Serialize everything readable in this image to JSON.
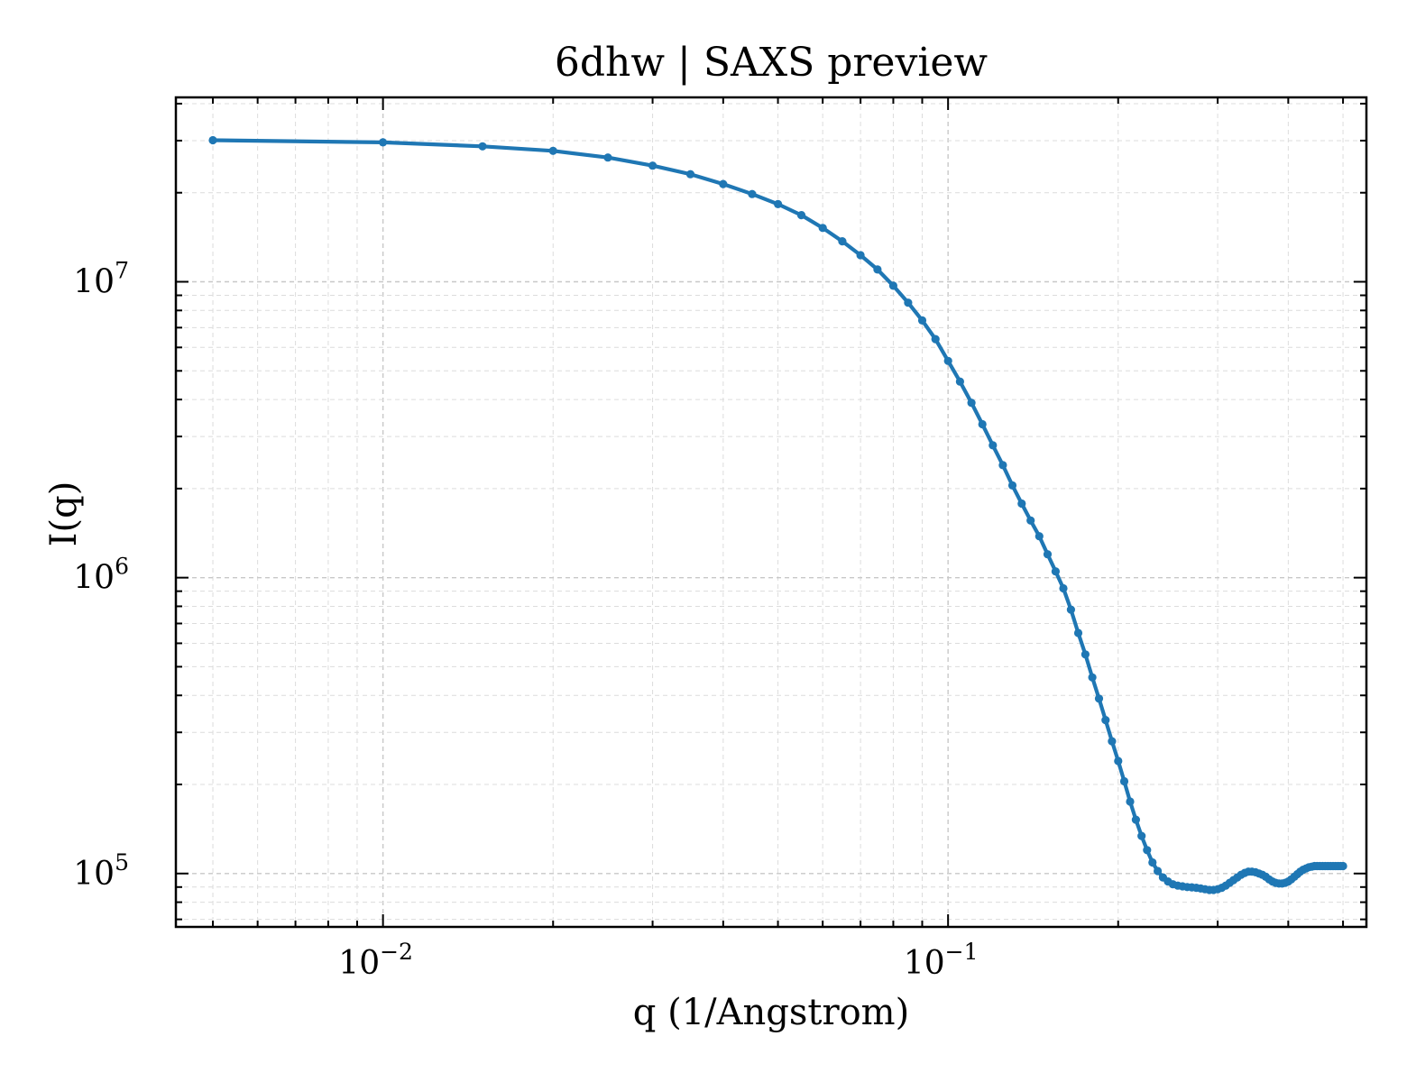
{
  "chart_data": {
    "type": "line",
    "title": "6dhw | SAXS preview",
    "xlabel": "q (1/Angstrom)",
    "ylabel": "I(q)",
    "xscale": "log",
    "yscale": "log",
    "xlim": [
      0.0043,
      0.55
    ],
    "ylim": [
      66000,
      42000000
    ],
    "grid": true,
    "line_color": "#1f77b4",
    "marker": "circle",
    "x_ticks": [
      {
        "value": 0.01,
        "base": "10",
        "exp": "−2"
      },
      {
        "value": 0.1,
        "base": "10",
        "exp": "−1"
      }
    ],
    "y_ticks": [
      {
        "value": 100000,
        "base": "10",
        "exp": "5"
      },
      {
        "value": 1000000,
        "base": "10",
        "exp": "6"
      },
      {
        "value": 10000000,
        "base": "10",
        "exp": "7"
      }
    ],
    "series": [
      {
        "x": [
          0.005,
          0.01,
          0.015,
          0.02,
          0.025,
          0.03,
          0.035,
          0.04,
          0.045,
          0.05,
          0.055,
          0.06,
          0.065,
          0.07,
          0.075,
          0.08,
          0.085,
          0.09,
          0.095,
          0.1,
          0.105,
          0.11,
          0.115,
          0.12,
          0.125,
          0.13,
          0.135,
          0.14,
          0.145,
          0.15,
          0.155,
          0.16,
          0.165,
          0.17,
          0.175,
          0.18,
          0.185,
          0.19,
          0.195,
          0.2,
          0.205,
          0.21,
          0.215,
          0.22,
          0.225,
          0.23,
          0.235,
          0.24,
          0.245,
          0.25,
          0.255,
          0.26,
          0.265,
          0.27,
          0.275,
          0.28,
          0.285,
          0.29,
          0.295,
          0.3,
          0.305,
          0.31,
          0.315,
          0.32,
          0.325,
          0.33,
          0.335,
          0.34,
          0.345,
          0.35,
          0.355,
          0.36,
          0.365,
          0.37,
          0.375,
          0.38,
          0.385,
          0.39,
          0.395,
          0.4,
          0.405,
          0.41,
          0.415,
          0.42,
          0.425,
          0.43,
          0.435,
          0.44,
          0.445,
          0.45,
          0.455,
          0.46,
          0.465,
          0.47,
          0.475,
          0.48,
          0.485,
          0.49,
          0.495,
          0.5
        ],
        "y": [
          30100000,
          29600000,
          28700000,
          27700000,
          26300000,
          24700000,
          23100000,
          21400000,
          19800000,
          18300000,
          16800000,
          15200000,
          13700000,
          12300000,
          11000000,
          9700000,
          8500000,
          7400000,
          6400000,
          5400000,
          4600000,
          3900000,
          3300000,
          2800000,
          2400000,
          2050000,
          1780000,
          1560000,
          1380000,
          1200000,
          1050000,
          920000,
          780000,
          650000,
          550000,
          460000,
          390000,
          330000,
          280000,
          240000,
          205000,
          175000,
          152000,
          134000,
          120000,
          109000,
          102000,
          97000,
          94000,
          92000,
          91000,
          90500,
          90000,
          89800,
          89500,
          89000,
          88500,
          88000,
          88000,
          88500,
          89500,
          91000,
          93000,
          95000,
          97000,
          99000,
          100500,
          101500,
          101500,
          101000,
          100000,
          99000,
          97500,
          95500,
          94000,
          93000,
          92500,
          92500,
          93000,
          94000,
          95500,
          97500,
          99500,
          101500,
          103000,
          104000,
          105000,
          105500,
          106000,
          106000,
          106000,
          106000,
          106000,
          106000,
          106000,
          106000,
          106000,
          106000,
          106000,
          106000
        ]
      }
    ]
  }
}
